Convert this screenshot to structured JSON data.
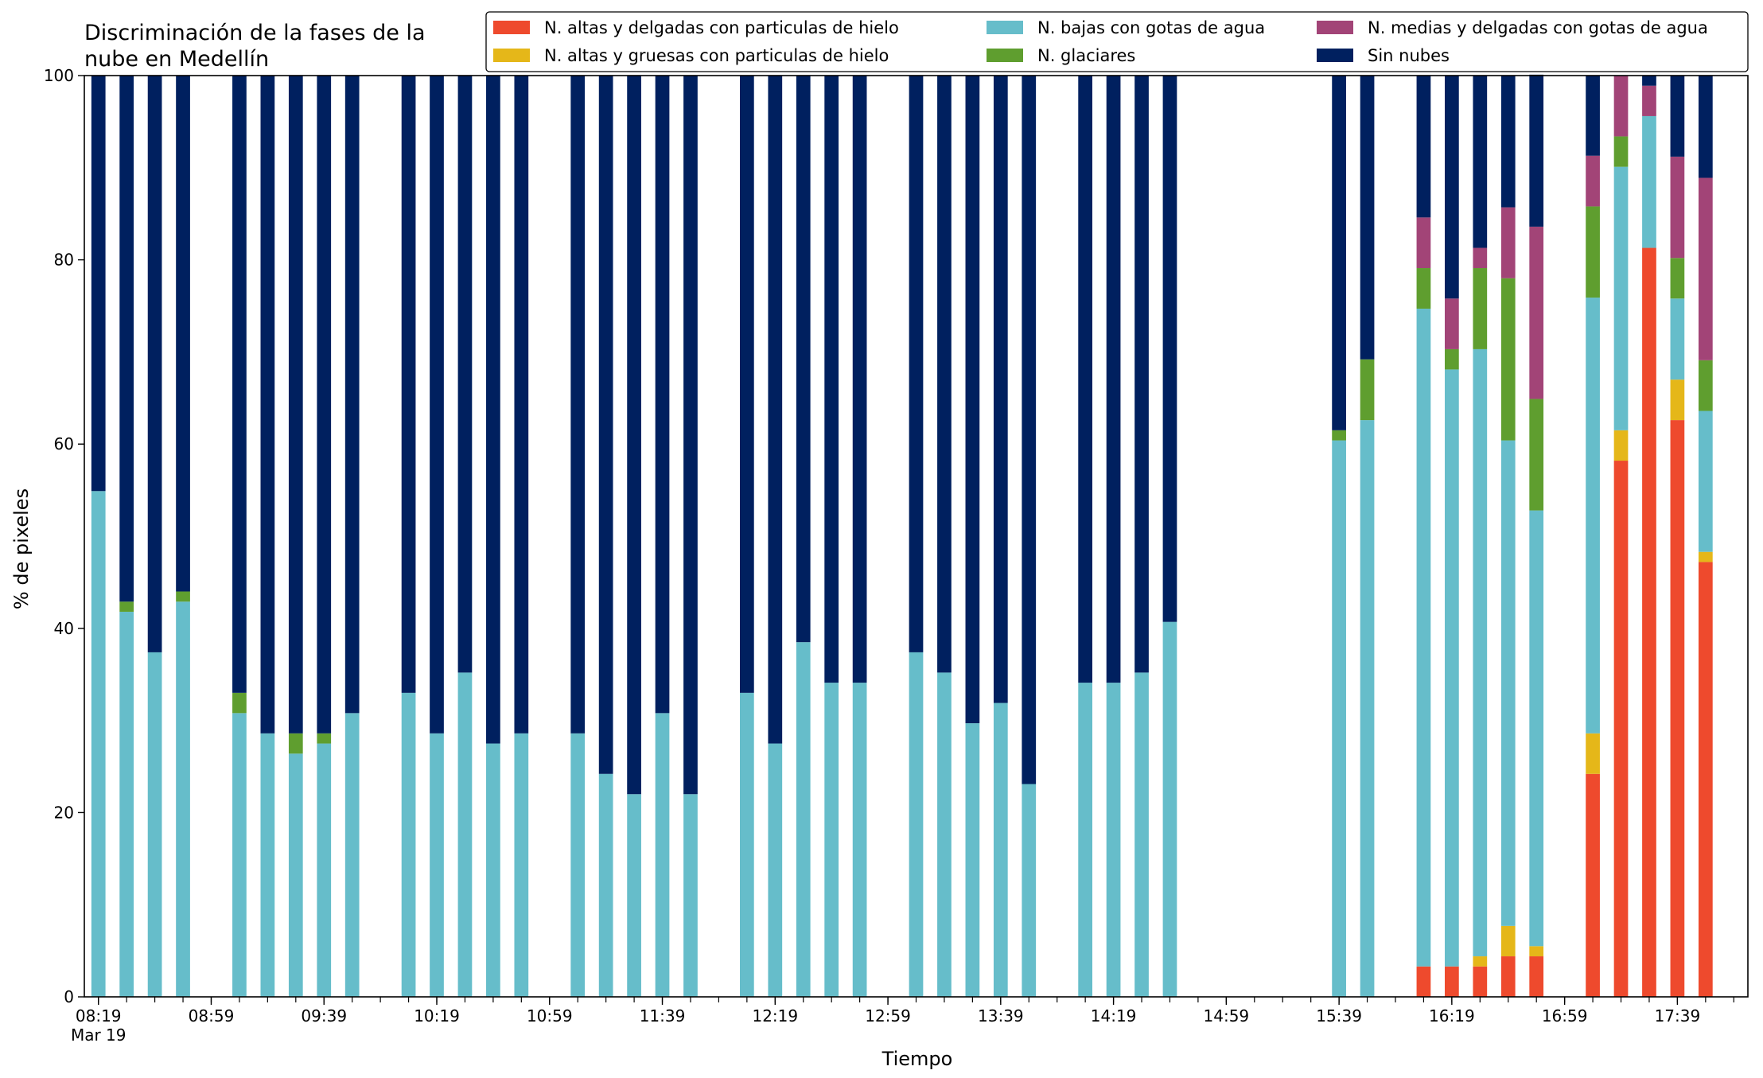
{
  "chart_data": {
    "type": "bar",
    "stacked": true,
    "title_lines": [
      "Discriminación de la fases de la",
      "nube en Medellín"
    ],
    "xlabel": "Tiempo",
    "ylabel": "% de pixeles",
    "ylim": [
      0,
      100
    ],
    "yticks": [
      0,
      20,
      40,
      60,
      80,
      100
    ],
    "x_start": "08:19",
    "x_end": "17:59",
    "x_step_minutes": 10,
    "x_labels": [
      {
        "time": "08:19",
        "text": "08:19",
        "sub": "Mar 19"
      },
      {
        "time": "08:59",
        "text": "08:59"
      },
      {
        "time": "09:39",
        "text": "09:39"
      },
      {
        "time": "10:19",
        "text": "10:19"
      },
      {
        "time": "10:59",
        "text": "10:59"
      },
      {
        "time": "11:39",
        "text": "11:39"
      },
      {
        "time": "12:19",
        "text": "12:19"
      },
      {
        "time": "12:59",
        "text": "12:59"
      },
      {
        "time": "13:39",
        "text": "13:39"
      },
      {
        "time": "14:19",
        "text": "14:19"
      },
      {
        "time": "14:59",
        "text": "14:59"
      },
      {
        "time": "15:39",
        "text": "15:39"
      },
      {
        "time": "16:19",
        "text": "16:19"
      },
      {
        "time": "16:59",
        "text": "16:59"
      },
      {
        "time": "17:39",
        "text": "17:39"
      }
    ],
    "categories": [
      "08:19",
      "08:29",
      "08:39",
      "08:49",
      "09:09",
      "09:19",
      "09:29",
      "09:39",
      "09:49",
      "10:09",
      "10:19",
      "10:29",
      "10:39",
      "10:49",
      "11:09",
      "11:19",
      "11:29",
      "11:39",
      "11:49",
      "12:09",
      "12:19",
      "12:29",
      "12:39",
      "12:49",
      "13:09",
      "13:19",
      "13:29",
      "13:39",
      "13:49",
      "14:09",
      "14:19",
      "14:29",
      "14:39",
      "15:39",
      "15:49",
      "16:09",
      "16:19",
      "16:29",
      "16:39",
      "16:49",
      "17:09",
      "17:19",
      "17:29",
      "17:39",
      "17:49"
    ],
    "legend_position": "top-right",
    "series": [
      {
        "name": "N. altas y delgadas con particulas de hielo",
        "color": "#ee4a2d",
        "values": [
          0,
          0,
          0,
          0,
          0,
          0,
          0,
          0,
          0,
          0,
          0,
          0,
          0,
          0,
          0,
          0,
          0,
          0,
          0,
          0,
          0,
          0,
          0,
          0,
          0,
          0,
          0,
          0,
          0,
          0,
          0,
          0,
          0,
          0,
          0,
          3.3,
          3.3,
          3.3,
          4.4,
          4.4,
          24.2,
          58.2,
          81.3,
          62.6,
          47.2
        ]
      },
      {
        "name": "N. altas y gruesas con particulas de hielo",
        "color": "#e5b719",
        "values": [
          0,
          0,
          0,
          0,
          0,
          0,
          0,
          0,
          0,
          0,
          0,
          0,
          0,
          0,
          0,
          0,
          0,
          0,
          0,
          0,
          0,
          0,
          0,
          0,
          0,
          0,
          0,
          0,
          0,
          0,
          0,
          0,
          0,
          0,
          0,
          0,
          0,
          1.1,
          3.3,
          1.1,
          4.4,
          3.3,
          0,
          4.4,
          1.1
        ]
      },
      {
        "name": "N. bajas con gotas de agua",
        "color": "#66bdca",
        "values": [
          54.9,
          41.8,
          37.4,
          42.9,
          30.8,
          28.6,
          26.4,
          27.5,
          30.8,
          33.0,
          28.6,
          35.2,
          27.5,
          28.6,
          28.6,
          24.2,
          22.0,
          30.8,
          22.0,
          33.0,
          27.5,
          38.5,
          34.1,
          34.1,
          37.4,
          35.2,
          29.7,
          31.9,
          23.1,
          34.1,
          34.1,
          35.2,
          40.7,
          60.4,
          62.6,
          71.4,
          64.8,
          65.9,
          52.7,
          47.3,
          47.3,
          28.6,
          14.3,
          8.8,
          15.3
        ]
      },
      {
        "name": "N. glaciares",
        "color": "#5f9e2f",
        "values": [
          0,
          1.1,
          0,
          1.1,
          2.2,
          0,
          2.2,
          1.1,
          0,
          0,
          0,
          0,
          0,
          0,
          0,
          0,
          0,
          0,
          0,
          0,
          0,
          0,
          0,
          0,
          0,
          0,
          0,
          0,
          0,
          0,
          0,
          0,
          0,
          1.1,
          6.6,
          4.4,
          2.2,
          8.8,
          17.6,
          12.1,
          9.9,
          3.3,
          0,
          4.4,
          5.5
        ]
      },
      {
        "name": "N. medias y delgadas con gotas de agua",
        "color": "#a24477",
        "values": [
          0,
          0,
          0,
          0,
          0,
          0,
          0,
          0,
          0,
          0,
          0,
          0,
          0,
          0,
          0,
          0,
          0,
          0,
          0,
          0,
          0,
          0,
          0,
          0,
          0,
          0,
          0,
          0,
          0,
          0,
          0,
          0,
          0,
          0,
          0,
          5.5,
          5.5,
          2.2,
          7.7,
          18.7,
          5.5,
          6.6,
          3.3,
          11.0,
          19.8
        ]
      },
      {
        "name": "Sin nubes",
        "color": "#00205f",
        "values": [
          45.1,
          57.1,
          62.6,
          56.0,
          67.0,
          71.4,
          71.4,
          71.4,
          69.2,
          67.0,
          71.4,
          64.8,
          72.5,
          71.4,
          71.4,
          75.8,
          78.0,
          69.2,
          78.0,
          67.0,
          72.5,
          61.5,
          65.9,
          65.9,
          62.6,
          64.8,
          70.3,
          68.1,
          76.9,
          65.9,
          65.9,
          64.8,
          59.3,
          38.5,
          30.8,
          15.4,
          24.2,
          18.7,
          14.3,
          16.5,
          8.7,
          0,
          1.1,
          8.8,
          11.1
        ]
      }
    ]
  }
}
